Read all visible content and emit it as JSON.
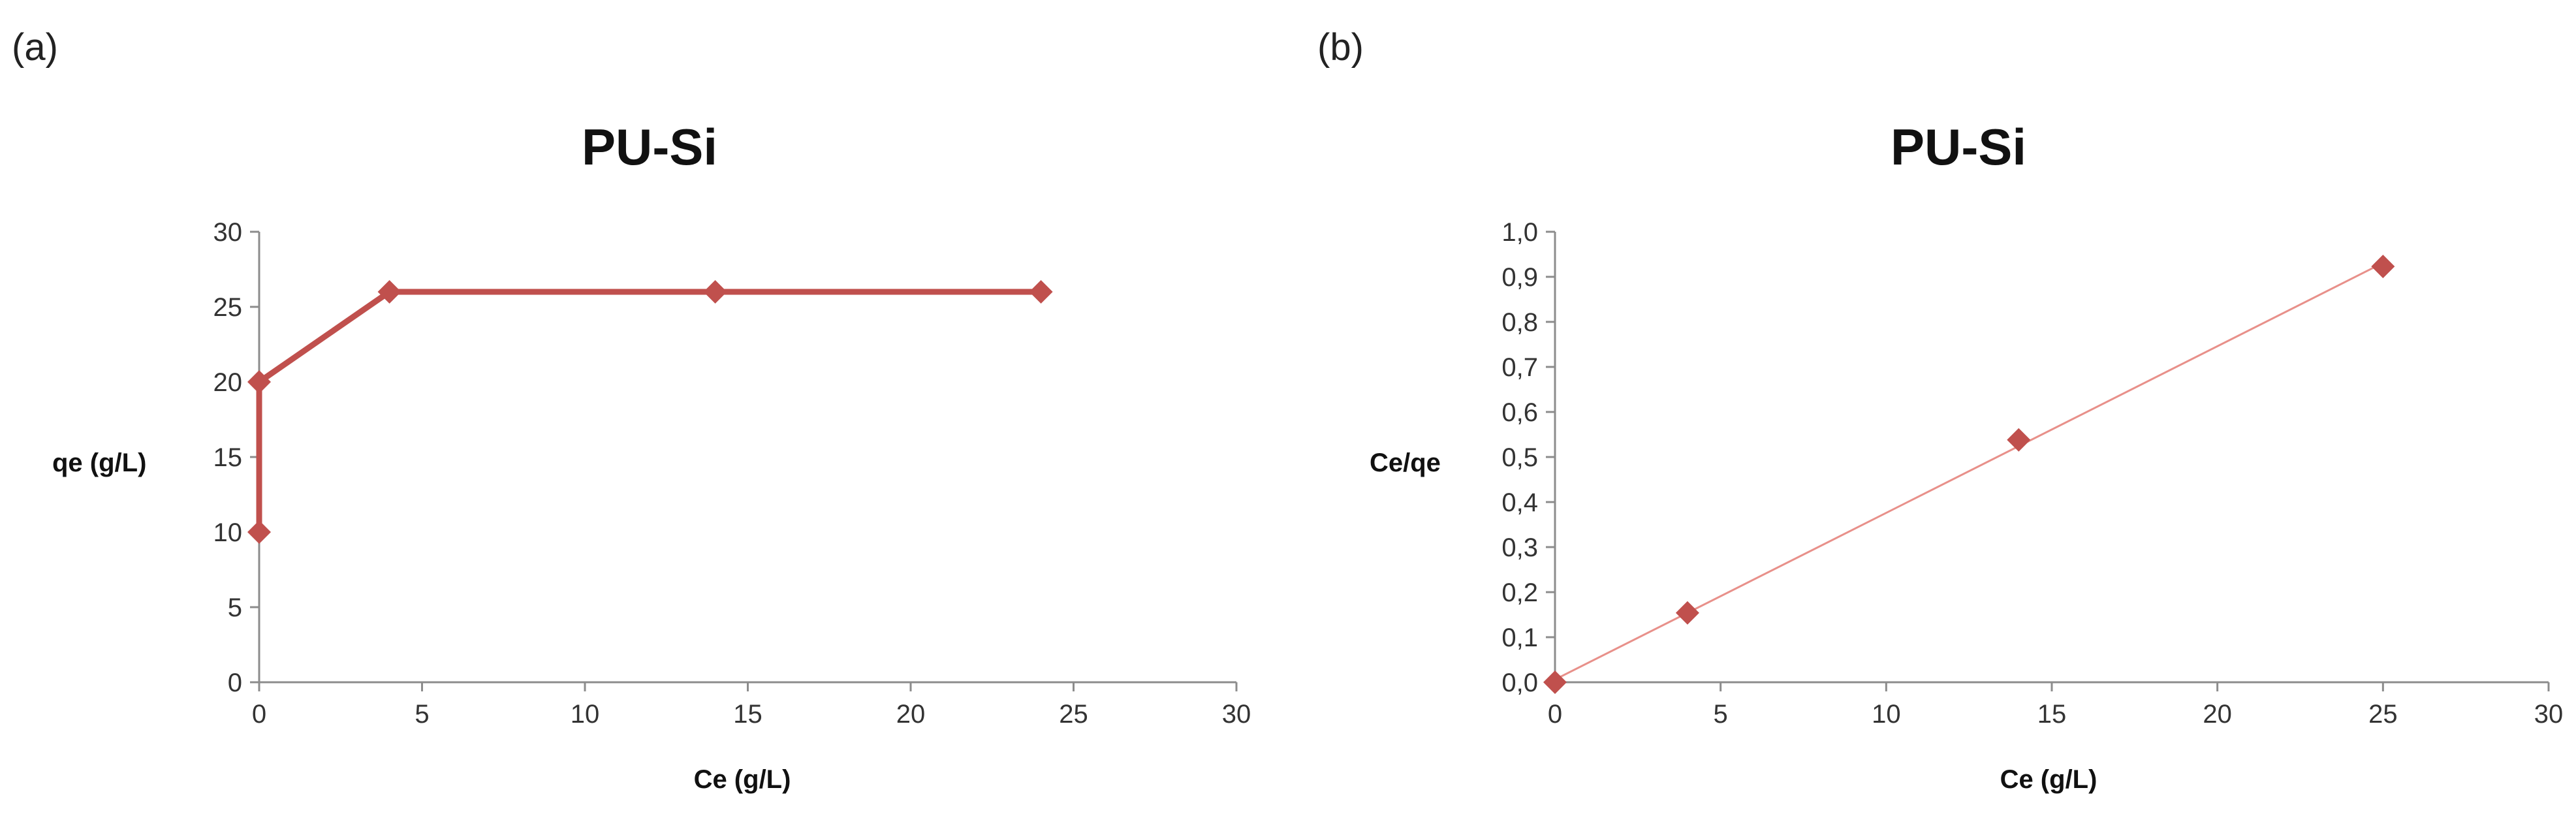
{
  "panels": [
    {
      "label": "(a)",
      "chart_data": {
        "type": "line",
        "title": "PU-Si",
        "xlabel": "Ce (g/L)",
        "ylabel": "qe (g/L)",
        "xlim": [
          0,
          30
        ],
        "ylim": [
          0,
          30
        ],
        "xticks": [
          "0",
          "5",
          "10",
          "15",
          "20",
          "25",
          "30"
        ],
        "yticks": [
          "0",
          "5",
          "10",
          "15",
          "20",
          "25",
          "30"
        ],
        "grid": false,
        "legend": "none",
        "series": [
          {
            "color": "#C0504D",
            "marker": "diamond",
            "points": [
              {
                "x": 0,
                "y": 10
              },
              {
                "x": 0,
                "y": 20
              },
              {
                "x": 4,
                "y": 26
              },
              {
                "x": 14,
                "y": 26
              },
              {
                "x": 24,
                "y": 26
              }
            ]
          }
        ]
      }
    },
    {
      "label": "(b)",
      "chart_data": {
        "type": "scatter",
        "title": "PU-Si",
        "xlabel": "Ce (g/L)",
        "ylabel": "Ce/qe",
        "xlim": [
          0,
          30
        ],
        "ylim": [
          0,
          1.0
        ],
        "xticks": [
          "0",
          "5",
          "10",
          "15",
          "20",
          "25",
          "30"
        ],
        "yticks": [
          "0,0",
          "0,1",
          "0,2",
          "0,3",
          "0,4",
          "0,5",
          "0,6",
          "0,7",
          "0,8",
          "0,9",
          "1,0"
        ],
        "grid": false,
        "legend": "none",
        "trendline": {
          "type": "linear",
          "color": "#E8908A"
        },
        "series": [
          {
            "color": "#C0504D",
            "marker": "diamond",
            "points": [
              {
                "x": 0,
                "y": 0.0
              },
              {
                "x": 4,
                "y": 0.154
              },
              {
                "x": 14,
                "y": 0.538
              },
              {
                "x": 25,
                "y": 0.923
              }
            ]
          }
        ]
      }
    }
  ]
}
